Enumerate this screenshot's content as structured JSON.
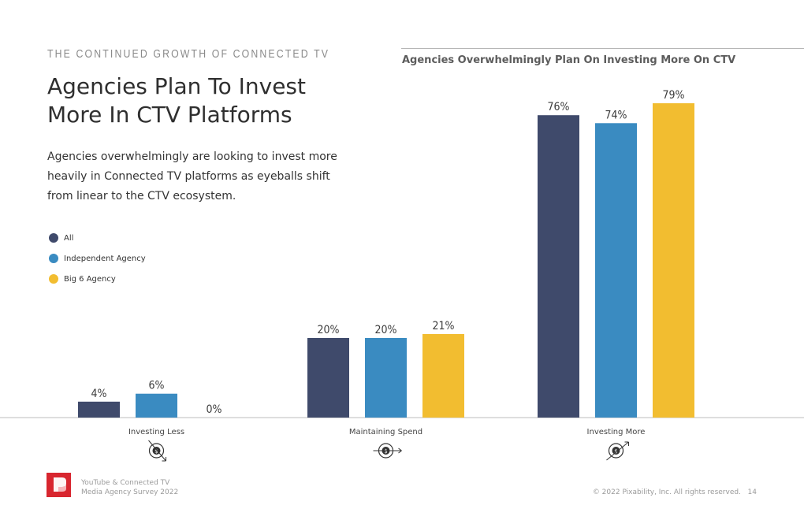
{
  "header": {
    "eyebrow": "THE CONTINUED GROWTH OF CONNECTED TV",
    "title": "Agencies Plan To Invest More In CTV Platforms",
    "description": "Agencies overwhelmingly are looking to invest more heavily in Connected TV platforms as eyeballs shift from linear to the CTV ecosystem."
  },
  "legend": [
    {
      "label": "All",
      "color": "#3f4a6b"
    },
    {
      "label": "Independent Agency",
      "color": "#3a8bc1"
    },
    {
      "label": "Big 6 Agency",
      "color": "#f2bd30"
    }
  ],
  "chart_data": {
    "type": "bar",
    "title": "Agencies Overwhelmingly Plan On Investing More On CTV",
    "categories": [
      "Investing Less",
      "Maintaining Spend",
      "Investing More"
    ],
    "series": [
      {
        "name": "All",
        "values": [
          4,
          20,
          76
        ],
        "color": "#3f4a6b"
      },
      {
        "name": "Independent Agency",
        "values": [
          6,
          20,
          74
        ],
        "color": "#3a8bc1"
      },
      {
        "name": "Big 6 Agency",
        "values": [
          0,
          21,
          79
        ],
        "color": "#f2bd30"
      }
    ],
    "value_suffix": "%",
    "ylim": [
      0,
      100
    ],
    "grid": false,
    "legend_position": "left"
  },
  "icons": [
    "spend-decrease-icon",
    "spend-same-icon",
    "spend-increase-icon"
  ],
  "footer": {
    "line1": "YouTube & Connected TV",
    "line2": "Media Agency Survey 2022",
    "copyright": "© 2022 Pixability, Inc. All rights reserved.",
    "page_number": "14"
  }
}
